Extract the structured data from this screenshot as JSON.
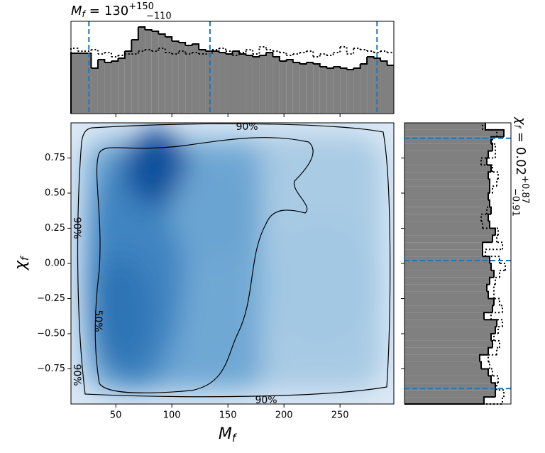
{
  "chart_data": [
    {
      "type": "histogram",
      "title": {
        "symbol": "M",
        "subscript": "f",
        "relation": "=",
        "median": 130,
        "upper": {
          "value": 150,
          "label": "+150"
        },
        "lower": {
          "value": -110,
          "label": "−110"
        }
      },
      "bins": [
        10,
        16,
        22,
        28,
        34,
        40,
        46,
        52,
        58,
        64,
        70,
        76,
        82,
        88,
        94,
        100,
        106,
        112,
        118,
        124,
        130,
        136,
        142,
        148,
        154,
        160,
        166,
        172,
        178,
        184,
        190,
        196,
        202,
        208,
        214,
        220,
        226,
        232,
        238,
        244,
        250,
        256,
        262,
        268,
        274,
        280,
        286,
        292,
        298
      ],
      "series": [
        {
          "name": "solid",
          "color": "#000000",
          "fill": "#808080",
          "values": [
            85,
            85,
            85,
            64,
            76,
            72,
            74,
            78,
            88,
            104,
            122,
            118,
            116,
            112,
            108,
            102,
            100,
            96,
            98,
            90,
            88,
            88,
            86,
            84,
            88,
            84,
            82,
            80,
            82,
            86,
            80,
            74,
            76,
            72,
            70,
            72,
            70,
            66,
            64,
            66,
            64,
            62,
            64,
            70,
            80,
            78,
            74,
            68
          ]
        },
        {
          "name": "dotted",
          "color": "#000000",
          "values": [
            92,
            88,
            88,
            90,
            84,
            86,
            80,
            82,
            84,
            84,
            88,
            90,
            88,
            92,
            86,
            84,
            88,
            84,
            86,
            84,
            84,
            90,
            92,
            88,
            82,
            86,
            90,
            84,
            94,
            90,
            88,
            86,
            82,
            84,
            86,
            88,
            80,
            84,
            82,
            86,
            94,
            84,
            92,
            90,
            88,
            86,
            88,
            86
          ]
        }
      ],
      "quantiles": [
        26,
        134,
        283
      ],
      "quantile_color": "#1f77b4",
      "xlim": [
        10,
        298
      ],
      "xticks": [
        50,
        100,
        150,
        200,
        250
      ],
      "ylim": [
        0,
        130
      ]
    },
    {
      "type": "density",
      "xlabel": {
        "symbol": "M",
        "subscript": "f"
      },
      "ylabel": {
        "symbol": "χ",
        "subscript": "f"
      },
      "xlim": [
        10,
        298
      ],
      "ylim": [
        -1,
        1
      ],
      "xticks": [
        50,
        100,
        150,
        200,
        250
      ],
      "yticks": [
        {
          "value": -0.75,
          "label": "−0.75"
        },
        {
          "value": -0.5,
          "label": "−0.50"
        },
        {
          "value": -0.25,
          "label": "−0.25"
        },
        {
          "value": 0,
          "label": "0.00"
        },
        {
          "value": 0.25,
          "label": "0.25"
        },
        {
          "value": 0.5,
          "label": "0.50"
        },
        {
          "value": 0.75,
          "label": "0.75"
        }
      ],
      "contour_labels": [
        "90%",
        "90%",
        "90%",
        "50%",
        "90%"
      ]
    },
    {
      "type": "histogram-horizontal",
      "title": {
        "symbol": "χ",
        "subscript": "f",
        "relation": "=",
        "median": 0.02,
        "upper": {
          "value": 0.87,
          "label": "+0.87"
        },
        "lower": {
          "value": -0.91,
          "label": "−0.91"
        }
      },
      "bins": [
        -1,
        -0.95,
        -0.9,
        -0.85,
        -0.8,
        -0.75,
        -0.7,
        -0.65,
        -0.6,
        -0.55,
        -0.5,
        -0.45,
        -0.4,
        -0.35,
        -0.3,
        -0.25,
        -0.2,
        -0.15,
        -0.1,
        -0.05,
        0,
        0.05,
        0.1,
        0.15,
        0.2,
        0.25,
        0.3,
        0.35,
        0.4,
        0.45,
        0.5,
        0.55,
        0.6,
        0.65,
        0.7,
        0.75,
        0.8,
        0.85,
        0.9,
        0.95,
        1
      ],
      "series": [
        {
          "name": "solid",
          "color": "#000000",
          "fill": "#808080",
          "values": [
            112,
            128,
            128,
            122,
            118,
            108,
            106,
            118,
            124,
            122,
            128,
            130,
            112,
            124,
            126,
            118,
            116,
            120,
            126,
            122,
            120,
            110,
            110,
            124,
            128,
            120,
            118,
            122,
            120,
            118,
            120,
            120,
            118,
            122,
            116,
            118,
            124,
            122,
            140,
            114
          ]
        },
        {
          "name": "dotted",
          "color": "#000000",
          "values": [
            138,
            140,
            130,
            132,
            124,
            120,
            118,
            130,
            134,
            126,
            132,
            138,
            122,
            138,
            134,
            126,
            126,
            128,
            134,
            142,
            134,
            114,
            138,
            130,
            132,
            110,
            108,
            116,
            120,
            118,
            124,
            130,
            132,
            124,
            108,
            128,
            128,
            124,
            130,
            110
          ]
        }
      ],
      "quantiles": [
        0.89,
        0.02,
        -0.89
      ],
      "quantile_color": "#1f77b4",
      "ylim": [
        -1,
        1
      ],
      "yticks": [
        -0.75,
        -0.5,
        -0.25,
        0,
        0.25,
        0.5,
        0.75
      ],
      "xlim": [
        0,
        150
      ]
    }
  ]
}
